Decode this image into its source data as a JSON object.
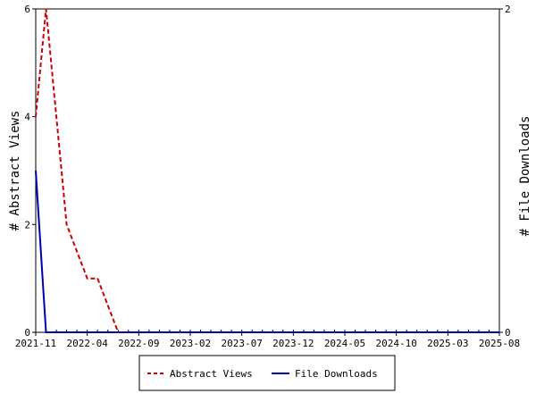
{
  "chart_data": {
    "type": "line",
    "x_labels": [
      "2021-11",
      "2022-04",
      "2022-09",
      "2023-02",
      "2023-07",
      "2023-12",
      "2024-05",
      "2024-10",
      "2025-03",
      "2025-08"
    ],
    "ylabel_left": "# Abstract Views",
    "ylabel_right": "# File Downloads",
    "ylim_left": [
      0,
      6
    ],
    "ylim_right": [
      0,
      2
    ],
    "yticks_left": [
      0,
      2,
      4,
      6
    ],
    "yticks_right": [
      0,
      2
    ],
    "legend_position": "bottom",
    "series": [
      {
        "name": "Abstract Views",
        "axis": "left",
        "color": "#cc0000",
        "style": "dashed",
        "values": [
          4,
          6,
          4,
          2,
          1.5,
          1,
          1,
          0.5,
          0,
          0,
          0,
          0,
          0,
          0,
          0,
          0,
          0,
          0,
          0,
          0,
          0,
          0,
          0,
          0,
          0,
          0,
          0,
          0,
          0,
          0,
          0,
          0,
          0,
          0,
          0,
          0,
          0,
          0,
          0,
          0,
          0,
          0,
          0,
          0,
          0,
          0
        ]
      },
      {
        "name": "File Downloads",
        "axis": "right",
        "color": "#0000aa",
        "style": "solid",
        "values": [
          1,
          0,
          0,
          0,
          0,
          0,
          0,
          0,
          0,
          0,
          0,
          0,
          0,
          0,
          0,
          0,
          0,
          0,
          0,
          0,
          0,
          0,
          0,
          0,
          0,
          0,
          0,
          0,
          0,
          0,
          0,
          0,
          0,
          0,
          0,
          0,
          0,
          0,
          0,
          0,
          0,
          0,
          0,
          0,
          0,
          0
        ]
      }
    ]
  }
}
